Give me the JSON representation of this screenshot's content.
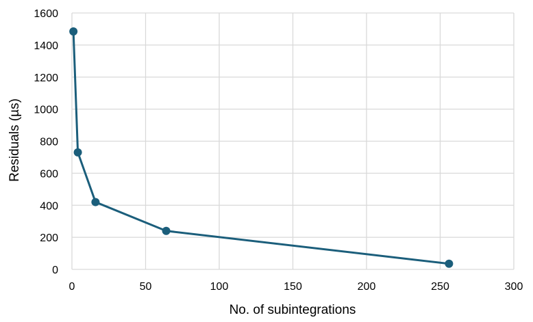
{
  "chart_data": {
    "type": "line",
    "title": "",
    "xlabel": "No. of subintegrations",
    "ylabel": "Residuals (µs)",
    "xlim": [
      0,
      300
    ],
    "ylim": [
      0,
      1600
    ],
    "x_ticks": [
      "0",
      "50",
      "100",
      "150",
      "200",
      "250",
      "300"
    ],
    "y_ticks": [
      "0",
      "200",
      "400",
      "600",
      "800",
      "1000",
      "1200",
      "1400",
      "1600"
    ],
    "grid": true,
    "legend": "none",
    "series": [
      {
        "color": "#1b5e7b",
        "marker": "circle",
        "points": [
          {
            "x": 1,
            "y": 1485
          },
          {
            "x": 4,
            "y": 730
          },
          {
            "x": 16,
            "y": 420
          },
          {
            "x": 64,
            "y": 240
          },
          {
            "x": 256,
            "y": 35
          }
        ]
      }
    ]
  }
}
